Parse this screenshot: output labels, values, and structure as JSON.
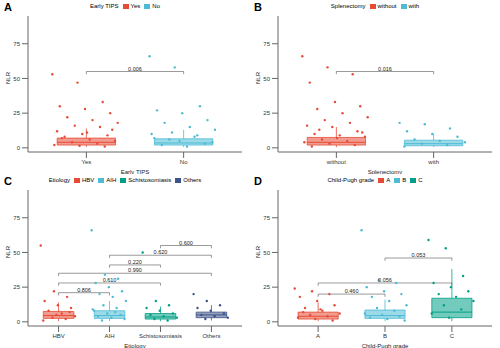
{
  "chart_data": [
    {
      "type": "box",
      "title": "A",
      "x_label": "Early TIPS",
      "y_label": "NLR",
      "legend_title": "Early TIPS",
      "ylim": [
        -3,
        95
      ],
      "yticks": [
        0,
        25,
        50,
        75
      ],
      "series": [
        {
          "name": "Yes",
          "color": "#E64B35",
          "q1": 2,
          "median": 4,
          "q3": 7,
          "whisker": [
            0.5,
            14
          ],
          "values": [
            53,
            47,
            33,
            30,
            28,
            25,
            22,
            20,
            18,
            16,
            15,
            12,
            10,
            9,
            8,
            6,
            5,
            4,
            3,
            2,
            1.5,
            1,
            7,
            11,
            13
          ]
        },
        {
          "name": "No",
          "color": "#4DBBD5",
          "q1": 2,
          "median": 3.5,
          "q3": 6.5,
          "whisker": [
            0.5,
            13
          ],
          "values": [
            66,
            58,
            30,
            27,
            25,
            20,
            18,
            15,
            13,
            11,
            9,
            7,
            5,
            3,
            2,
            1,
            4,
            6,
            8,
            10
          ]
        }
      ],
      "comparisons": [
        {
          "groups": [
            "Yes",
            "No"
          ],
          "label": "0.006",
          "y": 55
        }
      ]
    },
    {
      "type": "box",
      "title": "B",
      "x_label": "Splenectomy",
      "y_label": "NLR",
      "legend_title": "Splenectomy",
      "ylim": [
        -3,
        95
      ],
      "yticks": [
        0,
        25,
        50,
        75
      ],
      "series": [
        {
          "name": "without",
          "color": "#E64B35",
          "q1": 2,
          "median": 4,
          "q3": 7.5,
          "whisker": [
            0.5,
            15
          ],
          "values": [
            66,
            58,
            53,
            47,
            33,
            30,
            28,
            25,
            22,
            20,
            18,
            16,
            15,
            12,
            10,
            9,
            8,
            6,
            5,
            4,
            3,
            2,
            1,
            7,
            11,
            13
          ]
        },
        {
          "name": "with",
          "color": "#4DBBD5",
          "q1": 1.5,
          "median": 3,
          "q3": 5.5,
          "whisker": [
            0.5,
            10
          ],
          "values": [
            18,
            17,
            14,
            12,
            10,
            8,
            6,
            5,
            4,
            3,
            2,
            1
          ]
        }
      ],
      "comparisons": [
        {
          "groups": [
            "without",
            "with"
          ],
          "label": "0.016",
          "y": 55
        }
      ]
    },
    {
      "type": "box",
      "title": "C",
      "x_label": "Etiology",
      "y_label": "NLR",
      "legend_title": "Etiology",
      "ylim": [
        -3,
        95
      ],
      "yticks": [
        0,
        25,
        50,
        75
      ],
      "series": [
        {
          "name": "HBV",
          "color": "#E64B35",
          "q1": 2.5,
          "median": 4.5,
          "q3": 7.5,
          "whisker": [
            0.5,
            14
          ],
          "values": [
            55,
            22,
            18,
            15,
            12,
            10,
            8,
            6,
            4,
            3,
            2,
            1,
            5,
            7
          ]
        },
        {
          "name": "AIH",
          "color": "#4DBBD5",
          "q1": 2.5,
          "median": 4.5,
          "q3": 8,
          "whisker": [
            0.5,
            15
          ],
          "values": [
            66,
            34,
            31,
            28,
            25,
            22,
            20,
            18,
            15,
            12,
            10,
            8,
            6,
            5,
            4,
            3,
            2,
            1,
            7,
            9
          ]
        },
        {
          "name": "Schistosomiasis",
          "color": "#00A087",
          "q1": 2,
          "median": 3.5,
          "q3": 6,
          "whisker": [
            0.5,
            11
          ],
          "values": [
            50,
            15,
            12,
            10,
            8,
            6,
            5,
            4,
            3,
            2,
            1
          ]
        },
        {
          "name": "Others",
          "color": "#3C5488",
          "q1": 3,
          "median": 5,
          "q3": 7,
          "whisker": [
            1,
            12
          ],
          "values": [
            20,
            15,
            12,
            10,
            8,
            6,
            5,
            4,
            3,
            2
          ]
        }
      ],
      "comparisons": [
        {
          "groups": [
            "HBV",
            "AIH"
          ],
          "label": "0.806",
          "y": 21
        },
        {
          "groups": [
            "HBV",
            "Schistosomiasis"
          ],
          "label": "0.610",
          "y": 28
        },
        {
          "groups": [
            "HBV",
            "Others"
          ],
          "label": "0.990",
          "y": 35
        },
        {
          "groups": [
            "AIH",
            "Schistosomiasis"
          ],
          "label": "0.220",
          "y": 41
        },
        {
          "groups": [
            "AIH",
            "Others"
          ],
          "label": "0.620",
          "y": 48
        },
        {
          "groups": [
            "Schistosomiasis",
            "Others"
          ],
          "label": "0.600",
          "y": 55
        }
      ]
    },
    {
      "type": "box",
      "title": "D",
      "x_label": "Child-Pugh grade",
      "y_label": "NLR",
      "legend_title": "Child-Pugh grade",
      "ylim": [
        -3,
        95
      ],
      "yticks": [
        0,
        25,
        50,
        75
      ],
      "series": [
        {
          "name": "A",
          "color": "#E64B35",
          "q1": 2,
          "median": 4,
          "q3": 7,
          "whisker": [
            0.5,
            14
          ],
          "values": [
            24,
            22,
            20,
            18,
            15,
            12,
            10,
            8,
            6,
            5,
            4,
            3,
            2,
            1,
            7,
            9
          ]
        },
        {
          "name": "B",
          "color": "#4DBBD5",
          "q1": 2.5,
          "median": 4.5,
          "q3": 8.5,
          "whisker": [
            0.5,
            16
          ],
          "values": [
            66,
            30,
            28,
            25,
            22,
            20,
            18,
            15,
            12,
            10,
            8,
            6,
            5,
            4,
            3,
            2,
            1
          ]
        },
        {
          "name": "C",
          "color": "#00A087",
          "q1": 3,
          "median": 7,
          "q3": 17,
          "whisker": [
            0.5,
            38
          ],
          "values": [
            59,
            53,
            33,
            28,
            25,
            22,
            20,
            18,
            15,
            12,
            9,
            6,
            3
          ]
        }
      ],
      "comparisons": [
        {
          "groups": [
            "A",
            "B"
          ],
          "label": "0.460",
          "y": 20
        },
        {
          "groups": [
            "A",
            "C"
          ],
          "label": "0.056",
          "y": 28
        },
        {
          "groups": [
            "B",
            "C"
          ],
          "label": "0.053",
          "y": 46
        }
      ]
    }
  ]
}
